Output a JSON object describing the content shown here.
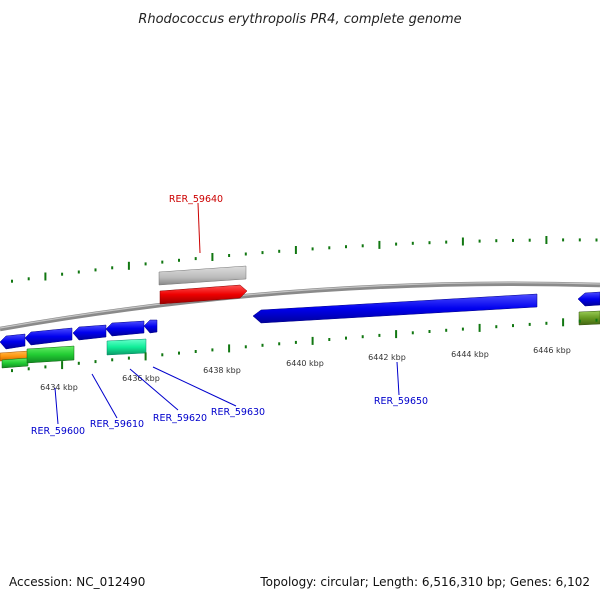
{
  "title": "Rhodococcus erythropolis PR4, complete genome",
  "footer": {
    "accession": "Accession: NC_012490",
    "summary": "Topology: circular; Length: 6,516,310 bp; Genes: 6,102"
  },
  "scale_labels": [
    "6434 kbp",
    "6436 kbp",
    "6438 kbp",
    "6440 kbp",
    "6442 kbp",
    "6444 kbp",
    "6446 kbp"
  ],
  "gene_labels": [
    {
      "name": "RER_59600",
      "color": "#0000cc"
    },
    {
      "name": "RER_59610",
      "color": "#0000cc"
    },
    {
      "name": "RER_59620",
      "color": "#0000cc"
    },
    {
      "name": "RER_59630",
      "color": "#0000cc"
    },
    {
      "name": "RER_59640",
      "color": "#cc0000"
    },
    {
      "name": "RER_59650",
      "color": "#0000cc"
    }
  ],
  "colors": {
    "backbone": "#8a8a8a",
    "forward_gene": "#0000ee",
    "highlight_gene": "#ee0000",
    "pseudo_gene": "#bbbbbb",
    "rna_gene": "#22cc33",
    "cyan_gene": "#11ee99",
    "orange_gene": "#ff9911",
    "olive_gene": "#669922",
    "tick": "#117711"
  }
}
